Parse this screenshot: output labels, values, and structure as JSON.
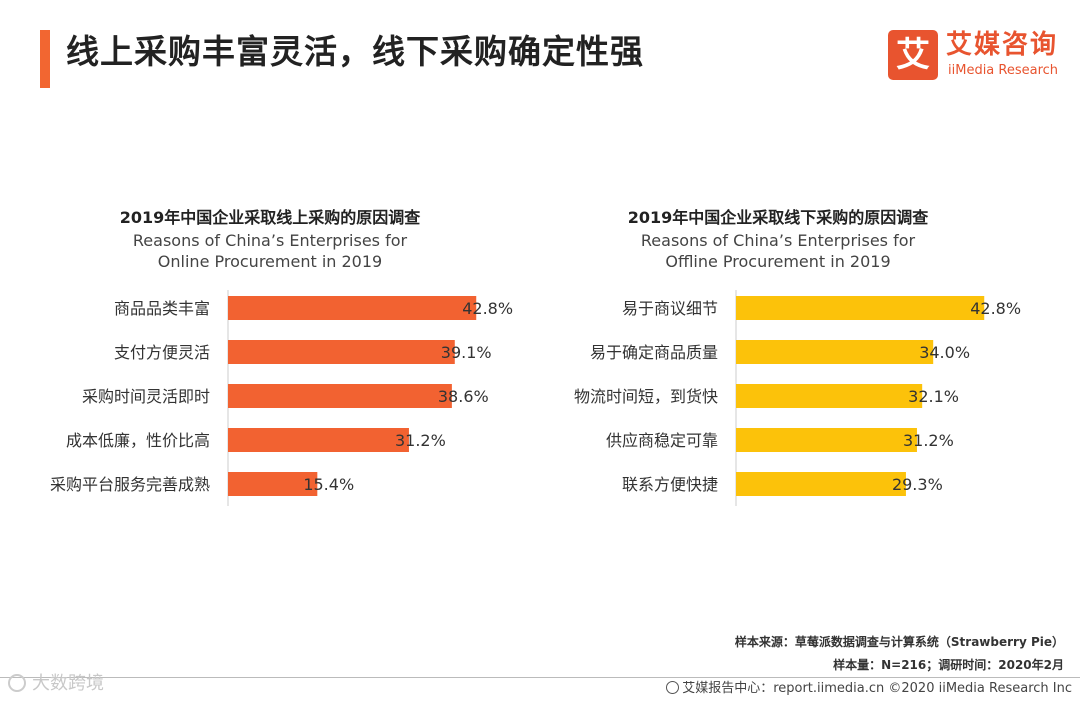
{
  "header": {
    "title": "线上采购丰富灵活，线下采购确定性强",
    "accent_color": "#f26631"
  },
  "logo": {
    "mark": "艾",
    "name_cn": "艾媒咨询",
    "name_en": "iiMedia Research",
    "color": "#e8542f"
  },
  "chart_data": [
    {
      "type": "bar",
      "orientation": "horizontal",
      "title_cn": "2019年中国企业采取线上采购的原因调查",
      "title_en": "Reasons of China’s Enterprises for Online Procurement in 2019",
      "categories": [
        "商品品类丰富",
        "支付方便灵活",
        "采购时间灵活即时",
        "成本低廉，性价比高",
        "采购平台服务完善成熟"
      ],
      "values": [
        42.8,
        39.1,
        38.6,
        31.2,
        15.4
      ],
      "value_labels": [
        "42.8%",
        "39.1%",
        "38.6%",
        "31.2%",
        "15.4%"
      ],
      "unit": "%",
      "xlim": [
        0,
        50
      ],
      "color": "#f26231"
    },
    {
      "type": "bar",
      "orientation": "horizontal",
      "title_cn": "2019年中国企业采取线下采购的原因调查",
      "title_en": "Reasons of China’s Enterprises for Offline Procurement in 2019",
      "categories": [
        "易于商议细节",
        "易于确定商品质量",
        "物流时间短，到货快",
        "供应商稳定可靠",
        "联系方便快捷"
      ],
      "values": [
        42.8,
        34.0,
        32.1,
        31.2,
        29.3
      ],
      "value_labels": [
        "42.8%",
        "34.0%",
        "32.1%",
        "31.2%",
        "29.3%"
      ],
      "unit": "%",
      "xlim": [
        0,
        50
      ],
      "color": "#fcc20a"
    }
  ],
  "source": {
    "line1": "样本来源：草莓派数据调查与计算系统（Strawberry Pie）",
    "line2": "样本量：N=216；调研时间：2020年2月"
  },
  "footer": {
    "left_text": "大数跨境",
    "right_text": "艾媒报告中心：report.iimedia.cn ©2020 iiMedia Research Inc"
  }
}
